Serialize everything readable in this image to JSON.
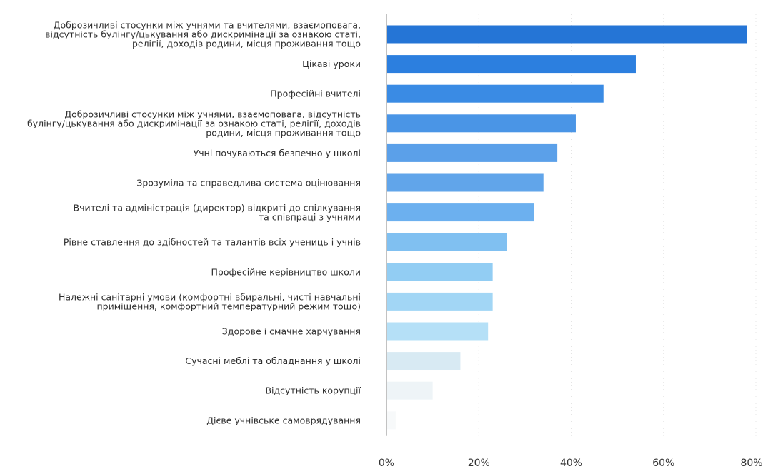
{
  "chart_data": {
    "type": "bar",
    "orientation": "horizontal",
    "title": "",
    "xlabel": "",
    "ylabel": "",
    "xlim": [
      0,
      80
    ],
    "x_ticks": [
      0,
      20,
      40,
      60,
      80
    ],
    "tick_suffix": "%",
    "grid": true,
    "legend": "none",
    "categories": [
      [
        "Доброзичливі стосунки між учнями та вчителями, взаємоповага,",
        "відсутність булінгу/цькування або дискримінації за ознакою статі,",
        "релігії, доходів родини, місця проживання тощо"
      ],
      [
        "Цікаві уроки"
      ],
      [
        "Професійні вчителі"
      ],
      [
        "Доброзичливі стосунки між учнями, взаємоповага, відсутність",
        "булінгу/цькування або дискримінації за ознакою статі, релігії, доходів",
        "родини, місця проживання тощо"
      ],
      [
        "Учні почуваються безпечно у школі"
      ],
      [
        "Зрозуміла та справедлива система оцінювання"
      ],
      [
        "Вчителі та адміністрація (директор) відкриті до спілкування",
        "та співпраці з учнями"
      ],
      [
        "Рівне ставлення до здібностей та талантів всіх учениць і учнів"
      ],
      [
        "Професійне керівництво школи"
      ],
      [
        "Належні санітарні умови (комфортні вбиральні, чисті навчальні",
        "приміщення, комфортний температурний режим тощо)"
      ],
      [
        "Здорове і смачне харчування"
      ],
      [
        "Сучасні меблі та обладнання у школі"
      ],
      [
        "Відсутність корупції"
      ],
      [
        "Дієве учнівське самоврядування"
      ]
    ],
    "values": [
      78,
      54,
      47,
      41,
      37,
      34,
      32,
      26,
      23,
      23,
      22,
      16,
      10,
      2
    ],
    "bar_colors": [
      "#2575d6",
      "#2c7fdf",
      "#3a8be4",
      "#4a95e6",
      "#5ba0e9",
      "#61a5ea",
      "#6cb0ef",
      "#80c0f1",
      "#92cdf3",
      "#a2d6f5",
      "#b5e0f7",
      "#d8eaf3",
      "#eef4f7",
      "#f7f9fa"
    ]
  }
}
